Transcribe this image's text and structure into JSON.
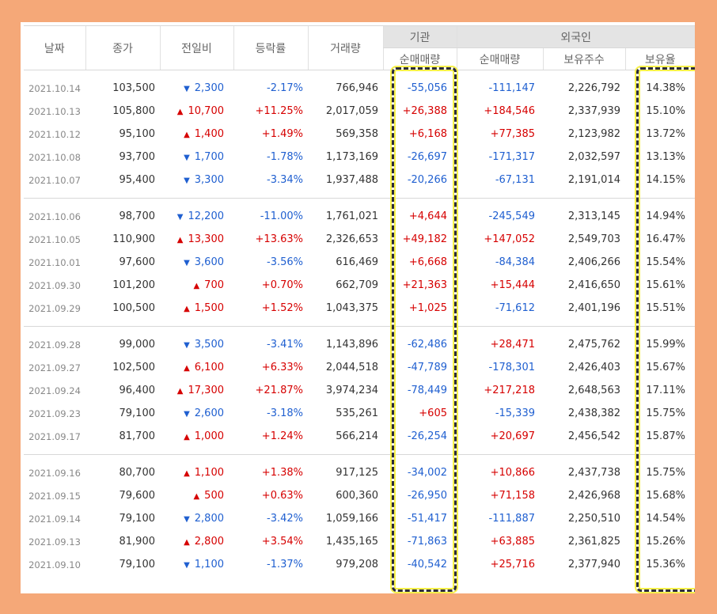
{
  "headers": {
    "date": "날짜",
    "close": "종가",
    "change": "전일비",
    "rate": "등락률",
    "volume": "거래량",
    "inst_group": "기관",
    "inst_net": "순매매량",
    "foreign_group": "외국인",
    "foreign_net": "순매매량",
    "foreign_hold": "보유주수",
    "foreign_ratio": "보유율"
  },
  "colors": {
    "up": "#d60000",
    "down": "#1f5fd0",
    "highlight": "#f7f14a"
  },
  "groups": [
    [
      {
        "date": "2021.10.14",
        "close": "103,500",
        "dir": "down",
        "change": "2,300",
        "rate": "-2.17%",
        "volume": "766,946",
        "inst": "-55,056",
        "foreign": "-111,147",
        "hold": "2,226,792",
        "ratio": "14.38%"
      },
      {
        "date": "2021.10.13",
        "close": "105,800",
        "dir": "up",
        "change": "10,700",
        "rate": "+11.25%",
        "volume": "2,017,059",
        "inst": "+26,388",
        "foreign": "+184,546",
        "hold": "2,337,939",
        "ratio": "15.10%"
      },
      {
        "date": "2021.10.12",
        "close": "95,100",
        "dir": "up",
        "change": "1,400",
        "rate": "+1.49%",
        "volume": "569,358",
        "inst": "+6,168",
        "foreign": "+77,385",
        "hold": "2,123,982",
        "ratio": "13.72%"
      },
      {
        "date": "2021.10.08",
        "close": "93,700",
        "dir": "down",
        "change": "1,700",
        "rate": "-1.78%",
        "volume": "1,173,169",
        "inst": "-26,697",
        "foreign": "-171,317",
        "hold": "2,032,597",
        "ratio": "13.13%"
      },
      {
        "date": "2021.10.07",
        "close": "95,400",
        "dir": "down",
        "change": "3,300",
        "rate": "-3.34%",
        "volume": "1,937,488",
        "inst": "-20,266",
        "foreign": "-67,131",
        "hold": "2,191,014",
        "ratio": "14.15%"
      }
    ],
    [
      {
        "date": "2021.10.06",
        "close": "98,700",
        "dir": "down",
        "change": "12,200",
        "rate": "-11.00%",
        "volume": "1,761,021",
        "inst": "+4,644",
        "foreign": "-245,549",
        "hold": "2,313,145",
        "ratio": "14.94%"
      },
      {
        "date": "2021.10.05",
        "close": "110,900",
        "dir": "up",
        "change": "13,300",
        "rate": "+13.63%",
        "volume": "2,326,653",
        "inst": "+49,182",
        "foreign": "+147,052",
        "hold": "2,549,703",
        "ratio": "16.47%"
      },
      {
        "date": "2021.10.01",
        "close": "97,600",
        "dir": "down",
        "change": "3,600",
        "rate": "-3.56%",
        "volume": "616,469",
        "inst": "+6,668",
        "foreign": "-84,384",
        "hold": "2,406,266",
        "ratio": "15.54%"
      },
      {
        "date": "2021.09.30",
        "close": "101,200",
        "dir": "up",
        "change": "700",
        "rate": "+0.70%",
        "volume": "662,709",
        "inst": "+21,363",
        "foreign": "+15,444",
        "hold": "2,416,650",
        "ratio": "15.61%"
      },
      {
        "date": "2021.09.29",
        "close": "100,500",
        "dir": "up",
        "change": "1,500",
        "rate": "+1.52%",
        "volume": "1,043,375",
        "inst": "+1,025",
        "foreign": "-71,612",
        "hold": "2,401,196",
        "ratio": "15.51%"
      }
    ],
    [
      {
        "date": "2021.09.28",
        "close": "99,000",
        "dir": "down",
        "change": "3,500",
        "rate": "-3.41%",
        "volume": "1,143,896",
        "inst": "-62,486",
        "foreign": "+28,471",
        "hold": "2,475,762",
        "ratio": "15.99%"
      },
      {
        "date": "2021.09.27",
        "close": "102,500",
        "dir": "up",
        "change": "6,100",
        "rate": "+6.33%",
        "volume": "2,044,518",
        "inst": "-47,789",
        "foreign": "-178,301",
        "hold": "2,426,403",
        "ratio": "15.67%"
      },
      {
        "date": "2021.09.24",
        "close": "96,400",
        "dir": "up",
        "change": "17,300",
        "rate": "+21.87%",
        "volume": "3,974,234",
        "inst": "-78,449",
        "foreign": "+217,218",
        "hold": "2,648,563",
        "ratio": "17.11%"
      },
      {
        "date": "2021.09.23",
        "close": "79,100",
        "dir": "down",
        "change": "2,600",
        "rate": "-3.18%",
        "volume": "535,261",
        "inst": "+605",
        "foreign": "-15,339",
        "hold": "2,438,382",
        "ratio": "15.75%"
      },
      {
        "date": "2021.09.17",
        "close": "81,700",
        "dir": "up",
        "change": "1,000",
        "rate": "+1.24%",
        "volume": "566,214",
        "inst": "-26,254",
        "foreign": "+20,697",
        "hold": "2,456,542",
        "ratio": "15.87%"
      }
    ],
    [
      {
        "date": "2021.09.16",
        "close": "80,700",
        "dir": "up",
        "change": "1,100",
        "rate": "+1.38%",
        "volume": "917,125",
        "inst": "-34,002",
        "foreign": "+10,866",
        "hold": "2,437,738",
        "ratio": "15.75%"
      },
      {
        "date": "2021.09.15",
        "close": "79,600",
        "dir": "up",
        "change": "500",
        "rate": "+0.63%",
        "volume": "600,360",
        "inst": "-26,950",
        "foreign": "+71,158",
        "hold": "2,426,968",
        "ratio": "15.68%"
      },
      {
        "date": "2021.09.14",
        "close": "79,100",
        "dir": "down",
        "change": "2,800",
        "rate": "-3.42%",
        "volume": "1,059,166",
        "inst": "-51,417",
        "foreign": "-111,887",
        "hold": "2,250,510",
        "ratio": "14.54%"
      },
      {
        "date": "2021.09.13",
        "close": "81,900",
        "dir": "up",
        "change": "2,800",
        "rate": "+3.54%",
        "volume": "1,435,165",
        "inst": "-71,863",
        "foreign": "+63,885",
        "hold": "2,361,825",
        "ratio": "15.26%"
      },
      {
        "date": "2021.09.10",
        "close": "79,100",
        "dir": "down",
        "change": "1,100",
        "rate": "-1.37%",
        "volume": "979,208",
        "inst": "-40,542",
        "foreign": "+25,716",
        "hold": "2,377,940",
        "ratio": "15.36%"
      }
    ]
  ]
}
